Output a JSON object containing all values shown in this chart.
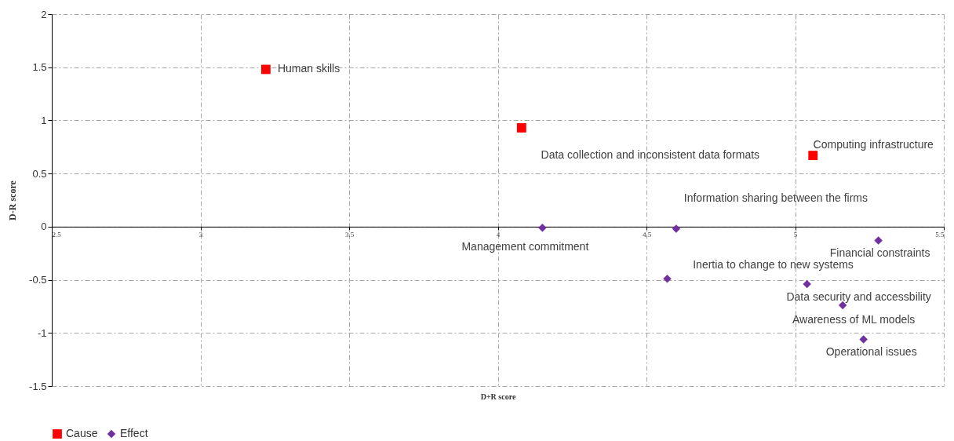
{
  "chart_data": {
    "type": "scatter",
    "xlabel": "D+R score",
    "ylabel": "D-R score",
    "xlim": [
      2.5,
      5.5
    ],
    "xticks": [
      2.5,
      3,
      3.5,
      4,
      4.5,
      5,
      5.5
    ],
    "ylim": [
      -1.5,
      2
    ],
    "yticks": [
      -1.5,
      -1,
      -0.5,
      0,
      0.5,
      1,
      1.5,
      2
    ],
    "grid": true,
    "legend": "bottom",
    "series": [
      {
        "name": "Cause",
        "color": "#ff0000",
        "marker": "square",
        "x": [
          3.22,
          4.08,
          5.06
        ],
        "values": [
          1.48,
          0.93,
          0.67
        ]
      },
      {
        "name": "Effect",
        "color": "#7030a0",
        "marker": "diamond",
        "x": [
          4.15,
          4.6,
          5.28,
          4.57,
          5.04,
          5.16,
          5.23
        ],
        "values": [
          -0.01,
          -0.02,
          -0.13,
          -0.49,
          -0.54,
          -0.74,
          -1.06
        ]
      }
    ],
    "annotations": [
      {
        "text": "Human skills",
        "x": 3.22,
        "y": 1.48
      },
      {
        "text": "Data collection  and inconsistent  data formats",
        "x": 4.08,
        "y": 0.93
      },
      {
        "text": "Computing  infrastructure",
        "x": 5.06,
        "y": 0.67
      },
      {
        "text": "Management  commitment",
        "x": 4.15,
        "y": -0.01
      },
      {
        "text": "Information  sharing  between  the firms",
        "x": 4.6,
        "y": -0.02
      },
      {
        "text": "Financial  constraints",
        "x": 5.28,
        "y": -0.13
      },
      {
        "text": "Inertia to change to new systems",
        "x": 4.57,
        "y": -0.49
      },
      {
        "text": "Data security and accessbility",
        "x": 5.04,
        "y": -0.54
      },
      {
        "text": "Awareness  of ML models",
        "x": 5.16,
        "y": -0.74
      },
      {
        "text": "Operational  issues",
        "x": 5.23,
        "y": -1.06
      }
    ]
  }
}
